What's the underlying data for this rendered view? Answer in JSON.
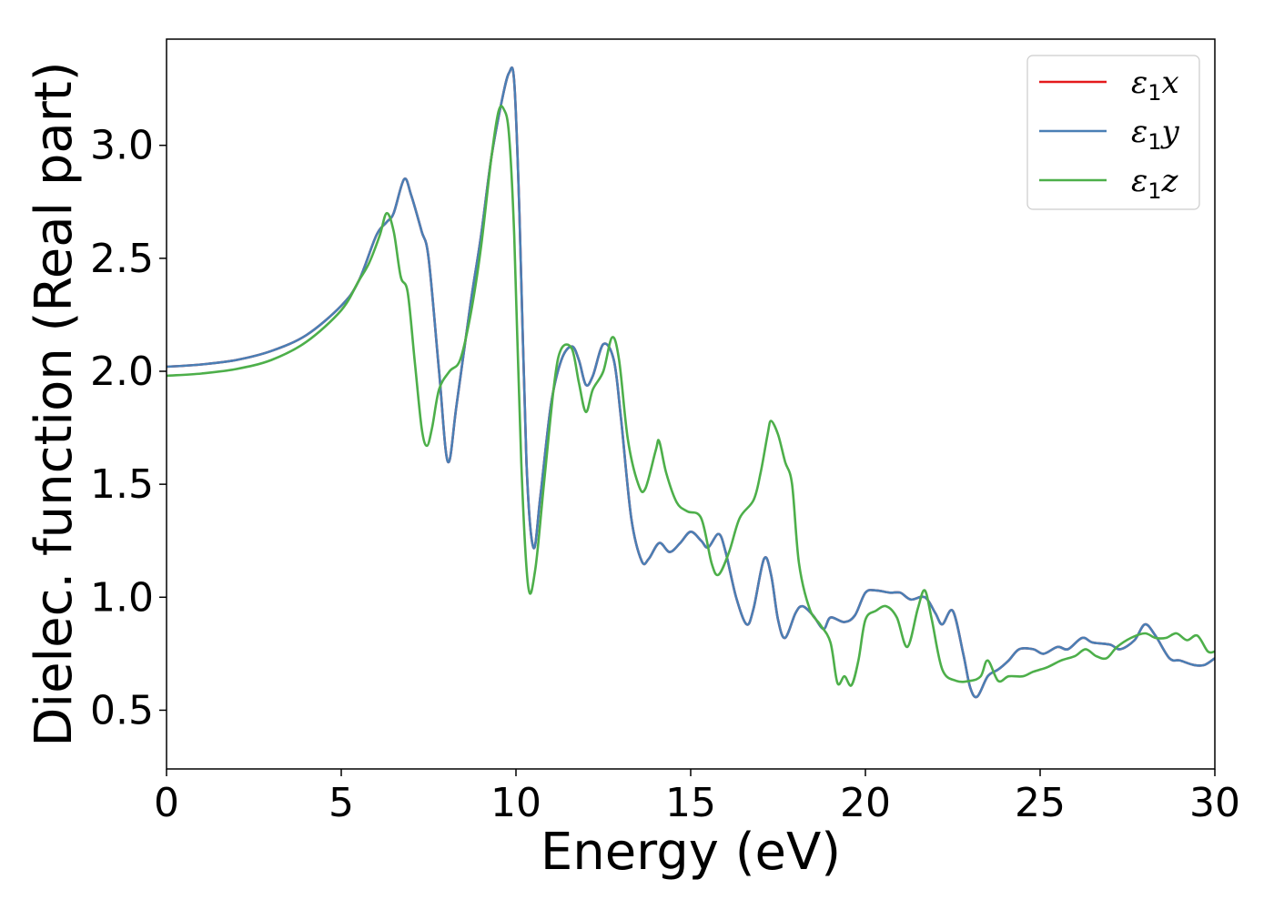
{
  "chart_data": {
    "type": "line",
    "title": "",
    "xlabel": "Energy (eV)",
    "ylabel": "Dielec. function (Real part)",
    "xlim": [
      0,
      30
    ],
    "ylim": [
      0.24,
      3.47
    ],
    "xticks": [
      0,
      5,
      10,
      15,
      20,
      25,
      30
    ],
    "xtick_labels": [
      "0",
      "5",
      "10",
      "15",
      "20",
      "25",
      "30"
    ],
    "yticks": [
      0.5,
      1.0,
      1.5,
      2.0,
      2.5,
      3.0
    ],
    "ytick_labels": [
      "0.5",
      "1.0",
      "1.5",
      "2.0",
      "2.5",
      "3.0"
    ],
    "grid": false,
    "legend_position": "top-right",
    "series": [
      {
        "name": "ε1x",
        "symbol": "ε",
        "subscript": "1",
        "component": "x",
        "color": "#e41a1c",
        "points": [
          [
            0,
            2.02
          ],
          [
            1,
            2.03
          ],
          [
            2,
            2.05
          ],
          [
            3,
            2.09
          ],
          [
            4,
            2.16
          ],
          [
            5,
            2.29
          ],
          [
            5.5,
            2.4
          ],
          [
            6,
            2.6
          ],
          [
            6.3,
            2.66
          ],
          [
            6.5,
            2.7
          ],
          [
            6.8,
            2.85
          ],
          [
            7,
            2.78
          ],
          [
            7.3,
            2.62
          ],
          [
            7.5,
            2.5
          ],
          [
            7.8,
            2.0
          ],
          [
            8.05,
            1.6
          ],
          [
            8.3,
            1.85
          ],
          [
            8.7,
            2.3
          ],
          [
            9,
            2.6
          ],
          [
            9.3,
            2.95
          ],
          [
            9.6,
            3.2
          ],
          [
            9.8,
            3.32
          ],
          [
            9.95,
            3.28
          ],
          [
            10.1,
            2.7
          ],
          [
            10.3,
            1.6
          ],
          [
            10.5,
            1.22
          ],
          [
            10.7,
            1.45
          ],
          [
            11,
            1.85
          ],
          [
            11.3,
            2.05
          ],
          [
            11.6,
            2.11
          ],
          [
            11.8,
            2.05
          ],
          [
            12,
            1.94
          ],
          [
            12.2,
            1.98
          ],
          [
            12.5,
            2.12
          ],
          [
            12.8,
            2.05
          ],
          [
            13,
            1.8
          ],
          [
            13.3,
            1.35
          ],
          [
            13.6,
            1.16
          ],
          [
            13.8,
            1.17
          ],
          [
            14.1,
            1.24
          ],
          [
            14.4,
            1.2
          ],
          [
            14.7,
            1.24
          ],
          [
            15,
            1.29
          ],
          [
            15.3,
            1.25
          ],
          [
            15.5,
            1.22
          ],
          [
            15.8,
            1.28
          ],
          [
            16,
            1.2
          ],
          [
            16.3,
            1.0
          ],
          [
            16.6,
            0.88
          ],
          [
            16.8,
            0.95
          ],
          [
            17.1,
            1.17
          ],
          [
            17.3,
            1.1
          ],
          [
            17.5,
            0.9
          ],
          [
            17.7,
            0.82
          ],
          [
            18,
            0.93
          ],
          [
            18.2,
            0.96
          ],
          [
            18.5,
            0.92
          ],
          [
            18.8,
            0.86
          ],
          [
            19,
            0.91
          ],
          [
            19.4,
            0.89
          ],
          [
            19.7,
            0.92
          ],
          [
            20,
            1.02
          ],
          [
            20.3,
            1.03
          ],
          [
            20.7,
            1.02
          ],
          [
            21,
            1.02
          ],
          [
            21.3,
            0.99
          ],
          [
            21.7,
            1.0
          ],
          [
            22,
            0.93
          ],
          [
            22.2,
            0.88
          ],
          [
            22.5,
            0.94
          ],
          [
            22.8,
            0.75
          ],
          [
            23,
            0.6
          ],
          [
            23.2,
            0.56
          ],
          [
            23.5,
            0.65
          ],
          [
            23.8,
            0.68
          ],
          [
            24.1,
            0.72
          ],
          [
            24.4,
            0.77
          ],
          [
            24.8,
            0.77
          ],
          [
            25.1,
            0.75
          ],
          [
            25.5,
            0.78
          ],
          [
            25.8,
            0.77
          ],
          [
            26.2,
            0.82
          ],
          [
            26.5,
            0.8
          ],
          [
            27,
            0.79
          ],
          [
            27.3,
            0.77
          ],
          [
            27.7,
            0.81
          ],
          [
            28,
            0.88
          ],
          [
            28.3,
            0.83
          ],
          [
            28.7,
            0.73
          ],
          [
            29,
            0.72
          ],
          [
            29.4,
            0.7
          ],
          [
            29.7,
            0.7
          ],
          [
            30,
            0.73
          ]
        ]
      },
      {
        "name": "ε1y",
        "symbol": "ε",
        "subscript": "1",
        "component": "y",
        "color": "#4a7fb5",
        "points": [
          [
            0,
            2.02
          ],
          [
            1,
            2.03
          ],
          [
            2,
            2.05
          ],
          [
            3,
            2.09
          ],
          [
            4,
            2.16
          ],
          [
            5,
            2.29
          ],
          [
            5.5,
            2.4
          ],
          [
            6,
            2.6
          ],
          [
            6.3,
            2.66
          ],
          [
            6.5,
            2.7
          ],
          [
            6.8,
            2.85
          ],
          [
            7,
            2.78
          ],
          [
            7.3,
            2.62
          ],
          [
            7.5,
            2.5
          ],
          [
            7.8,
            2.0
          ],
          [
            8.05,
            1.6
          ],
          [
            8.3,
            1.85
          ],
          [
            8.7,
            2.3
          ],
          [
            9,
            2.6
          ],
          [
            9.3,
            2.95
          ],
          [
            9.6,
            3.2
          ],
          [
            9.8,
            3.32
          ],
          [
            9.95,
            3.28
          ],
          [
            10.1,
            2.7
          ],
          [
            10.3,
            1.6
          ],
          [
            10.5,
            1.22
          ],
          [
            10.7,
            1.45
          ],
          [
            11,
            1.85
          ],
          [
            11.3,
            2.05
          ],
          [
            11.6,
            2.11
          ],
          [
            11.8,
            2.05
          ],
          [
            12,
            1.94
          ],
          [
            12.2,
            1.98
          ],
          [
            12.5,
            2.12
          ],
          [
            12.8,
            2.05
          ],
          [
            13,
            1.8
          ],
          [
            13.3,
            1.35
          ],
          [
            13.6,
            1.16
          ],
          [
            13.8,
            1.17
          ],
          [
            14.1,
            1.24
          ],
          [
            14.4,
            1.2
          ],
          [
            14.7,
            1.24
          ],
          [
            15,
            1.29
          ],
          [
            15.3,
            1.25
          ],
          [
            15.5,
            1.22
          ],
          [
            15.8,
            1.28
          ],
          [
            16,
            1.2
          ],
          [
            16.3,
            1.0
          ],
          [
            16.6,
            0.88
          ],
          [
            16.8,
            0.95
          ],
          [
            17.1,
            1.17
          ],
          [
            17.3,
            1.1
          ],
          [
            17.5,
            0.9
          ],
          [
            17.7,
            0.82
          ],
          [
            18,
            0.93
          ],
          [
            18.2,
            0.96
          ],
          [
            18.5,
            0.92
          ],
          [
            18.8,
            0.86
          ],
          [
            19,
            0.91
          ],
          [
            19.4,
            0.89
          ],
          [
            19.7,
            0.92
          ],
          [
            20,
            1.02
          ],
          [
            20.3,
            1.03
          ],
          [
            20.7,
            1.02
          ],
          [
            21,
            1.02
          ],
          [
            21.3,
            0.99
          ],
          [
            21.7,
            1.0
          ],
          [
            22,
            0.93
          ],
          [
            22.2,
            0.88
          ],
          [
            22.5,
            0.94
          ],
          [
            22.8,
            0.75
          ],
          [
            23,
            0.6
          ],
          [
            23.2,
            0.56
          ],
          [
            23.5,
            0.65
          ],
          [
            23.8,
            0.68
          ],
          [
            24.1,
            0.72
          ],
          [
            24.4,
            0.77
          ],
          [
            24.8,
            0.77
          ],
          [
            25.1,
            0.75
          ],
          [
            25.5,
            0.78
          ],
          [
            25.8,
            0.77
          ],
          [
            26.2,
            0.82
          ],
          [
            26.5,
            0.8
          ],
          [
            27,
            0.79
          ],
          [
            27.3,
            0.77
          ],
          [
            27.7,
            0.81
          ],
          [
            28,
            0.88
          ],
          [
            28.3,
            0.83
          ],
          [
            28.7,
            0.73
          ],
          [
            29,
            0.72
          ],
          [
            29.4,
            0.7
          ],
          [
            29.7,
            0.7
          ],
          [
            30,
            0.73
          ]
        ]
      },
      {
        "name": "ε1z",
        "symbol": "ε",
        "subscript": "1",
        "component": "z",
        "color": "#4daf4a",
        "points": [
          [
            0,
            1.98
          ],
          [
            1,
            1.99
          ],
          [
            2,
            2.01
          ],
          [
            3,
            2.05
          ],
          [
            4,
            2.13
          ],
          [
            5,
            2.27
          ],
          [
            5.5,
            2.4
          ],
          [
            5.8,
            2.48
          ],
          [
            6.1,
            2.6
          ],
          [
            6.3,
            2.7
          ],
          [
            6.5,
            2.62
          ],
          [
            6.7,
            2.42
          ],
          [
            6.9,
            2.35
          ],
          [
            7.1,
            2.05
          ],
          [
            7.3,
            1.75
          ],
          [
            7.45,
            1.67
          ],
          [
            7.6,
            1.75
          ],
          [
            7.8,
            1.92
          ],
          [
            8.1,
            2.0
          ],
          [
            8.4,
            2.05
          ],
          [
            8.7,
            2.25
          ],
          [
            9,
            2.55
          ],
          [
            9.3,
            2.95
          ],
          [
            9.5,
            3.15
          ],
          [
            9.65,
            3.16
          ],
          [
            9.8,
            3.05
          ],
          [
            9.95,
            2.6
          ],
          [
            10.15,
            1.6
          ],
          [
            10.35,
            1.05
          ],
          [
            10.55,
            1.12
          ],
          [
            10.8,
            1.5
          ],
          [
            11.1,
            1.95
          ],
          [
            11.3,
            2.1
          ],
          [
            11.6,
            2.1
          ],
          [
            11.8,
            1.95
          ],
          [
            12,
            1.82
          ],
          [
            12.2,
            1.92
          ],
          [
            12.5,
            2.0
          ],
          [
            12.75,
            2.15
          ],
          [
            12.95,
            2.05
          ],
          [
            13.2,
            1.7
          ],
          [
            13.5,
            1.5
          ],
          [
            13.7,
            1.48
          ],
          [
            14,
            1.65
          ],
          [
            14.1,
            1.69
          ],
          [
            14.3,
            1.55
          ],
          [
            14.6,
            1.42
          ],
          [
            14.9,
            1.38
          ],
          [
            15.3,
            1.35
          ],
          [
            15.6,
            1.15
          ],
          [
            15.8,
            1.1
          ],
          [
            16.1,
            1.2
          ],
          [
            16.4,
            1.35
          ],
          [
            16.8,
            1.43
          ],
          [
            17,
            1.55
          ],
          [
            17.2,
            1.72
          ],
          [
            17.3,
            1.78
          ],
          [
            17.5,
            1.72
          ],
          [
            17.7,
            1.6
          ],
          [
            17.9,
            1.5
          ],
          [
            18.1,
            1.15
          ],
          [
            18.4,
            0.95
          ],
          [
            18.7,
            0.88
          ],
          [
            19,
            0.8
          ],
          [
            19.2,
            0.62
          ],
          [
            19.4,
            0.65
          ],
          [
            19.6,
            0.61
          ],
          [
            19.8,
            0.72
          ],
          [
            20,
            0.9
          ],
          [
            20.3,
            0.94
          ],
          [
            20.6,
            0.96
          ],
          [
            20.9,
            0.91
          ],
          [
            21.2,
            0.78
          ],
          [
            21.5,
            0.95
          ],
          [
            21.7,
            1.03
          ],
          [
            21.9,
            0.9
          ],
          [
            22.2,
            0.68
          ],
          [
            22.6,
            0.63
          ],
          [
            23,
            0.63
          ],
          [
            23.3,
            0.65
          ],
          [
            23.5,
            0.72
          ],
          [
            23.8,
            0.63
          ],
          [
            24.1,
            0.65
          ],
          [
            24.5,
            0.65
          ],
          [
            24.8,
            0.67
          ],
          [
            25.2,
            0.69
          ],
          [
            25.6,
            0.72
          ],
          [
            26,
            0.74
          ],
          [
            26.3,
            0.77
          ],
          [
            26.6,
            0.74
          ],
          [
            26.9,
            0.73
          ],
          [
            27.2,
            0.78
          ],
          [
            27.6,
            0.82
          ],
          [
            28,
            0.84
          ],
          [
            28.3,
            0.82
          ],
          [
            28.6,
            0.82
          ],
          [
            28.9,
            0.84
          ],
          [
            29.2,
            0.81
          ],
          [
            29.5,
            0.83
          ],
          [
            29.8,
            0.76
          ],
          [
            30,
            0.76
          ]
        ]
      }
    ]
  }
}
